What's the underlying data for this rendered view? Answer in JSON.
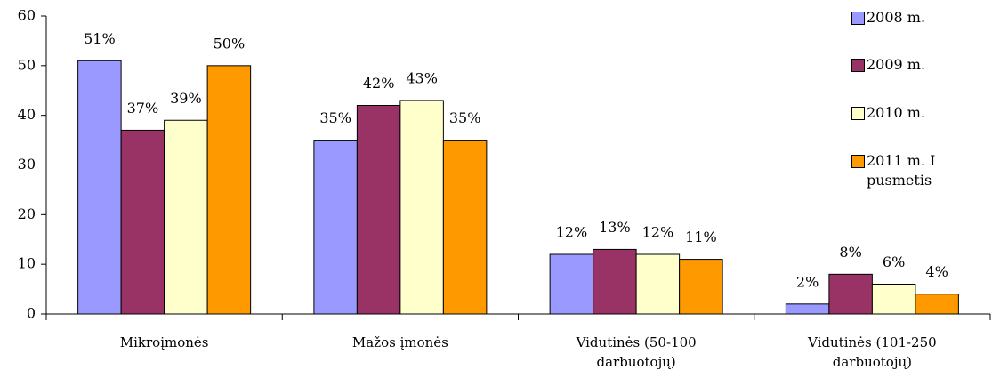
{
  "chart_data": {
    "type": "bar",
    "categories": [
      "Mikroįmonės",
      "Mažos įmonės",
      "Vidutinės (50-100 darbuotojų)",
      "Vidutinės (101-250 darbuotojų)"
    ],
    "series": [
      {
        "name": "2008 m.",
        "color": "#9999ff",
        "values": [
          51,
          35,
          12,
          2
        ],
        "value_labels": [
          "51%",
          "35%",
          "12%",
          "2%"
        ]
      },
      {
        "name": "2009 m.",
        "color": "#993366",
        "values": [
          37,
          42,
          13,
          8
        ],
        "value_labels": [
          "37%",
          "42%",
          "13%",
          "8%"
        ]
      },
      {
        "name": "2010 m.",
        "color": "#ffffcc",
        "values": [
          39,
          43,
          12,
          6
        ],
        "value_labels": [
          "39%",
          "43%",
          "12%",
          "6%"
        ]
      },
      {
        "name": "2011 m. I pusmetis",
        "color": "#ff9900",
        "values": [
          50,
          35,
          11,
          4
        ],
        "value_labels": [
          "50%",
          "35%",
          "11%",
          "4%"
        ]
      }
    ],
    "ylim": [
      0,
      60
    ],
    "yticks": [
      0,
      10,
      20,
      30,
      40,
      50,
      60
    ],
    "legend": "right"
  }
}
